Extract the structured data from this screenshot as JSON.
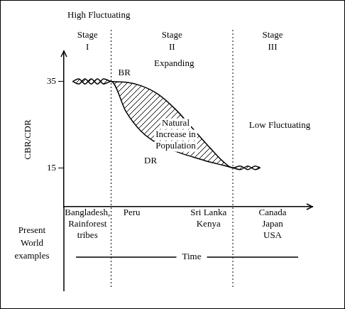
{
  "chart_data": {
    "type": "line",
    "xlabel": "Time",
    "ylabel": "CBR/CDR",
    "x": [
      0.35,
      0.6,
      0.85,
      1.1,
      1.35,
      1.6,
      1.9,
      2.5,
      3.1,
      3.8,
      4.5,
      5.2,
      5.9,
      6.4,
      6.8,
      7.1,
      7.4,
      7.7,
      7.9
    ],
    "series": [
      {
        "name": "BR",
        "color": "#000000",
        "values": [
          35,
          35.6,
          34.4,
          35.6,
          34.4,
          35.6,
          35,
          34.8,
          34,
          32,
          28.5,
          24,
          19.5,
          16.5,
          15,
          15.4,
          14.6,
          15.4,
          15
        ]
      },
      {
        "name": "DR",
        "color": "#000000",
        "values": [
          35,
          34.4,
          35.6,
          34.4,
          35.6,
          34.4,
          35,
          28,
          23.5,
          20.5,
          18.8,
          17.5,
          16.3,
          15.6,
          15,
          14.6,
          15.4,
          14.6,
          15
        ]
      }
    ],
    "xlim": [
      0,
      10
    ],
    "ylim": [
      6,
      42
    ],
    "yticks": [
      15,
      35
    ],
    "tick_labels": "y",
    "grid": false,
    "area_label": [
      "Natural",
      "Increase in",
      "Population"
    ],
    "stage_boundaries": [
      1.9,
      6.8
    ],
    "stages": [
      {
        "name": [
          "Stage",
          "I"
        ],
        "description": "High Fluctuating",
        "examples": [
          [
            "Bangladesh,",
            "Rainforest",
            "tribes"
          ]
        ]
      },
      {
        "name": [
          "Stage",
          "II"
        ],
        "description": "Expanding",
        "examples": [
          [
            "Peru"
          ],
          [
            "Sri Lanka",
            "Kenya"
          ]
        ]
      },
      {
        "name": [
          "Stage",
          "III"
        ],
        "description": "Low Fluctuating",
        "examples": [
          [
            "Canada",
            "Japan",
            "USA"
          ]
        ]
      }
    ],
    "examples_label": [
      "Present",
      "World",
      "examples"
    ]
  }
}
